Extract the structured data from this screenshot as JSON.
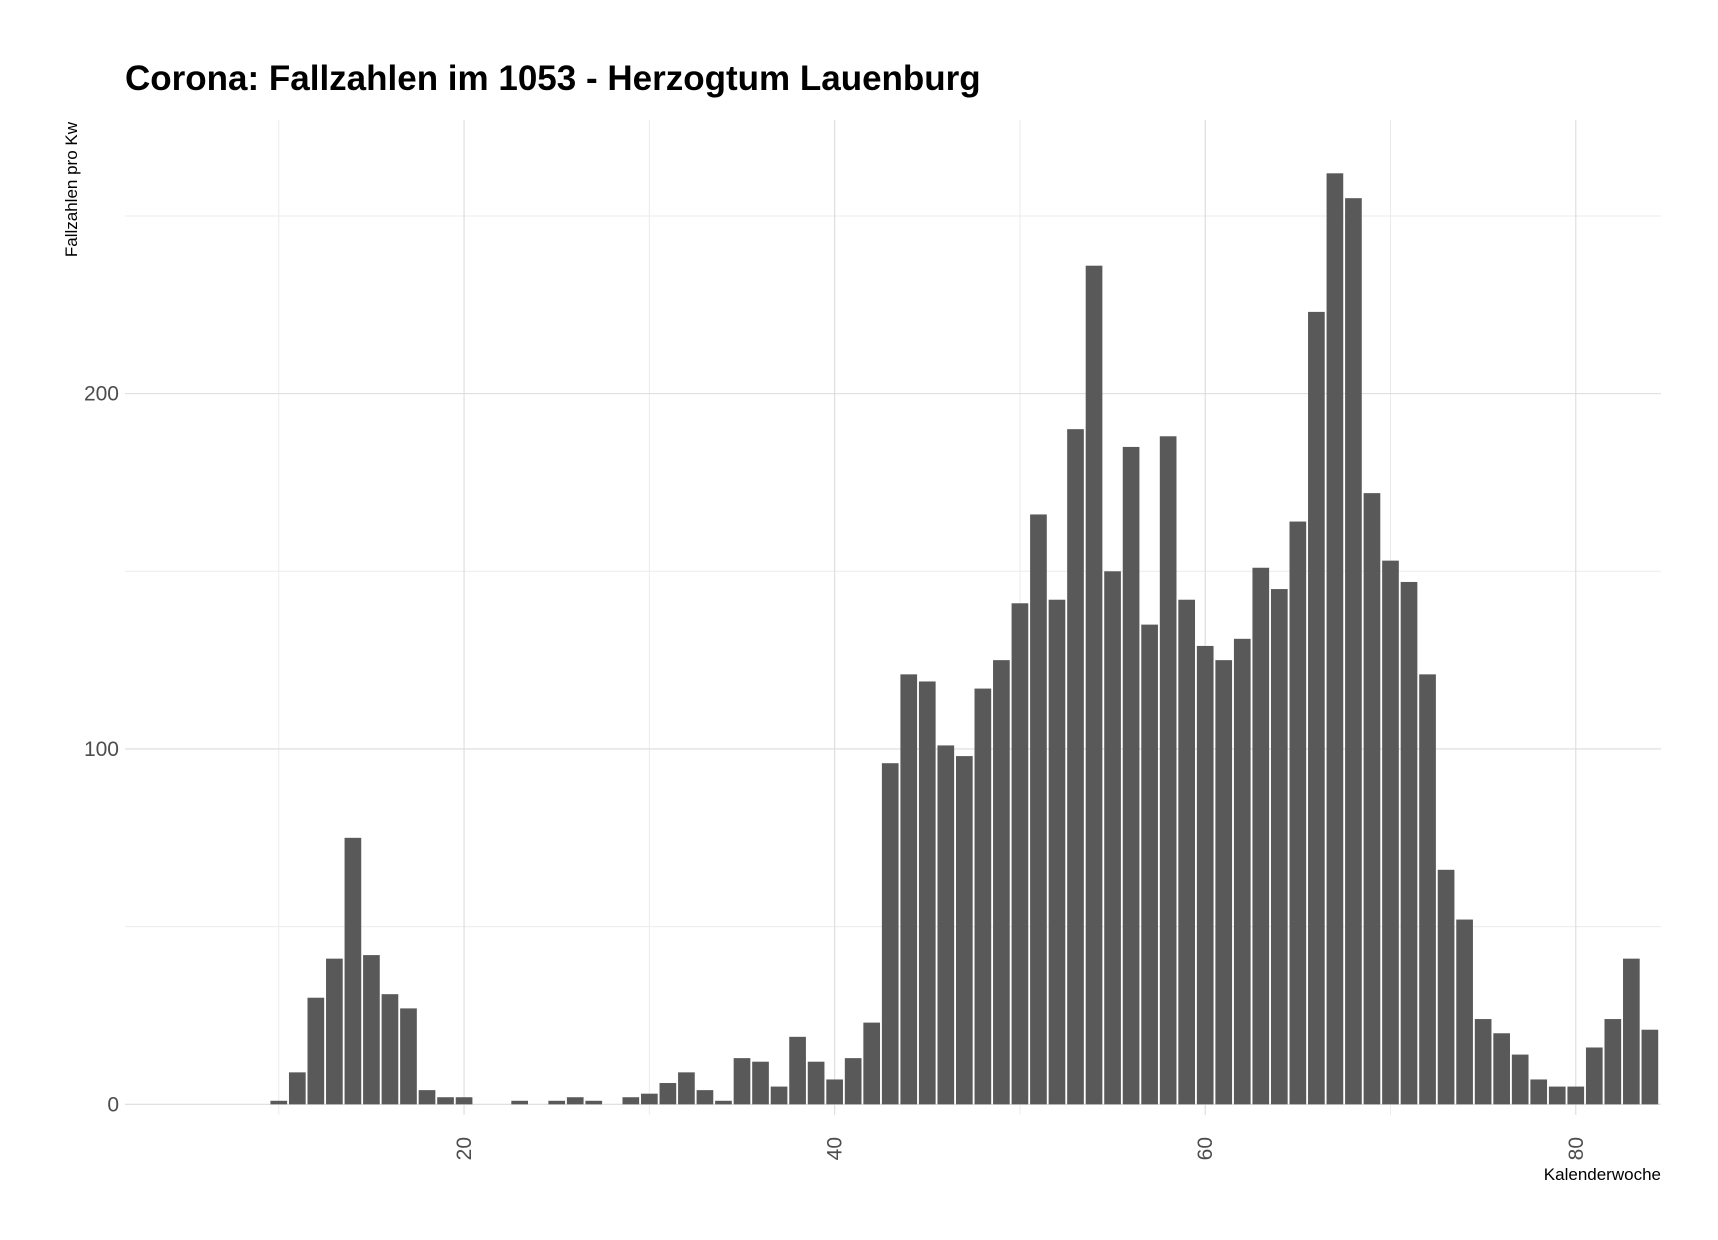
{
  "chart_data": {
    "type": "bar",
    "title": "Corona: Fallzahlen im 1053 - Herzogtum Lauenburg",
    "xlabel": "Kalenderwoche",
    "ylabel": "Fallzahlen pro Kw",
    "xlim": [
      1.7,
      84.6
    ],
    "ylim": [
      -3,
      277
    ],
    "x_ticks": [
      20,
      40,
      60,
      80
    ],
    "y_ticks": [
      0,
      100,
      200
    ],
    "grid": true,
    "bar_color": "#595959",
    "x": [
      10,
      11,
      12,
      13,
      14,
      15,
      16,
      17,
      18,
      19,
      20,
      21,
      22,
      23,
      24,
      25,
      26,
      27,
      28,
      29,
      30,
      31,
      32,
      33,
      34,
      35,
      36,
      37,
      38,
      39,
      40,
      41,
      42,
      43,
      44,
      45,
      46,
      47,
      48,
      49,
      50,
      51,
      52,
      53,
      54,
      55,
      56,
      57,
      58,
      59,
      60,
      61,
      62,
      63,
      64,
      65,
      66,
      67,
      68,
      69,
      70,
      71,
      72,
      73,
      74,
      75,
      76,
      77,
      78,
      79,
      80,
      81,
      82,
      83,
      84
    ],
    "values": [
      1,
      9,
      30,
      41,
      75,
      42,
      31,
      27,
      4,
      2,
      2,
      0,
      0,
      1,
      0,
      1,
      2,
      1,
      0,
      2,
      3,
      6,
      9,
      4,
      1,
      13,
      12,
      5,
      19,
      12,
      7,
      13,
      23,
      96,
      121,
      119,
      101,
      98,
      117,
      125,
      141,
      166,
      142,
      190,
      236,
      150,
      185,
      135,
      188,
      142,
      129,
      125,
      131,
      151,
      145,
      164,
      223,
      262,
      255,
      172,
      153,
      147,
      121,
      66,
      52,
      24,
      20,
      14,
      7,
      5,
      5,
      16,
      24,
      41,
      21
    ]
  }
}
